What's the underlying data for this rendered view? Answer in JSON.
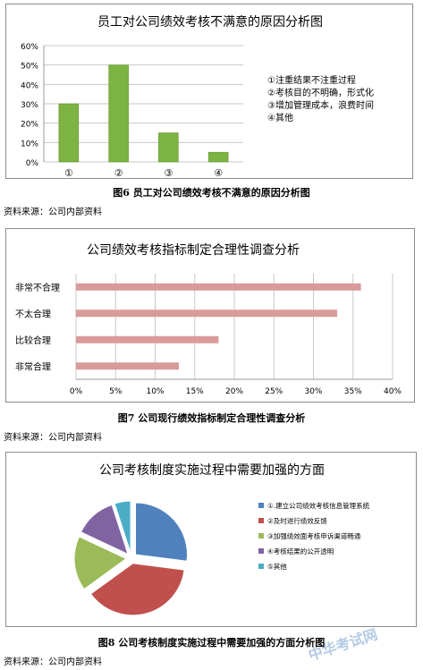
{
  "charts": [
    {
      "caption": "图6   员工对公司绩效考核不满意的原因分析图",
      "source": "资料来源：公司内部资料",
      "chart_data": {
        "type": "bar",
        "title": "员工对公司绩效考核不满意的原因分析图",
        "categories": [
          "①",
          "②",
          "③",
          "④"
        ],
        "values": [
          30,
          50,
          15,
          5
        ],
        "ylim": [
          0,
          60
        ],
        "yticks": [
          "0%",
          "10%",
          "20%",
          "30%",
          "40%",
          "50%",
          "60%"
        ],
        "grid": true,
        "legend_placement": "right",
        "legend_text": [
          "①注重结果不注重过程",
          "②考核目的不明确，形式化",
          "③增加管理成本，浪费时间",
          "④其他"
        ],
        "bar_color": "#7cb342"
      }
    },
    {
      "caption": "图7   公司现行绩效指标制定合理性调查分析",
      "source": "资料来源：公司内部资料",
      "chart_data": {
        "type": "bar",
        "orientation": "horizontal",
        "title": "公司绩效考核指标制定合理性调查分析",
        "categories": [
          "非常不合理",
          "不太合理",
          "比较合理",
          "非常合理"
        ],
        "values": [
          36,
          33,
          18,
          13
        ],
        "xlim": [
          0,
          40
        ],
        "xticks": [
          "0%",
          "5%",
          "10%",
          "15%",
          "20%",
          "25%",
          "30%",
          "35%",
          "40%"
        ],
        "grid": true,
        "bar_color": "#d99a9a"
      }
    },
    {
      "caption": "图8   公司考核制度实施过程中需要加强的方面分析图",
      "source": "资料来源：公司内部资料",
      "chart_data": {
        "type": "pie",
        "title": "公司考核制度实施过程中需要加强的方面",
        "labels": [
          "①.建立公司绩效考核信息管理系统",
          "②及时进行绩效反馈",
          "③加强绩效面考核申诉渠道畅通",
          "④考核结果的公开透明",
          "⑤其他"
        ],
        "values": [
          27,
          38,
          17,
          13,
          5
        ],
        "colors": [
          "#4f81bd",
          "#c0504d",
          "#9bbb59",
          "#8064a2",
          "#4bacc6"
        ],
        "legend_placement": "right"
      }
    }
  ],
  "watermark": "中华考试网"
}
